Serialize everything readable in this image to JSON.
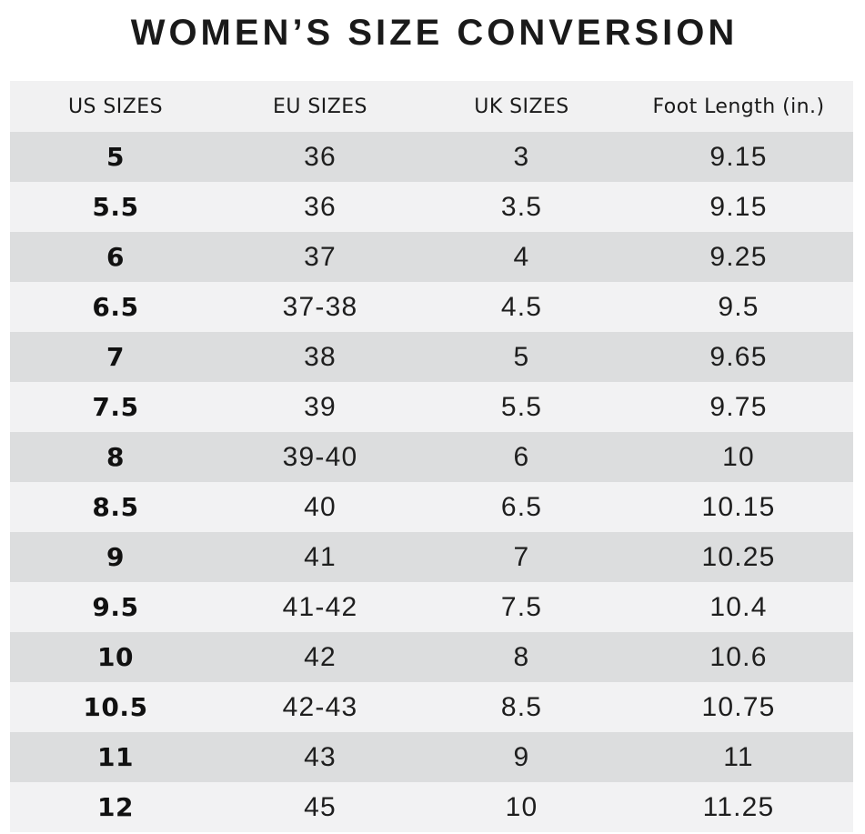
{
  "page": {
    "title": "WOMEN’S SIZE CONVERSION"
  },
  "colors": {
    "page_bg": "#ffffff",
    "header_row_bg": "#f1f1f2",
    "row_alt_dark": "#dcddde",
    "row_alt_light": "#f2f2f3",
    "text": "#1a1a1a"
  },
  "chart_data": {
    "type": "table",
    "title": "WOMEN’S SIZE CONVERSION",
    "columns": [
      "US SIZES",
      "EU SIZES",
      "UK SIZES",
      "Foot Length (in.)"
    ],
    "rows": [
      [
        "5",
        "36",
        "3",
        "9.15"
      ],
      [
        "5.5",
        "36",
        "3.5",
        "9.15"
      ],
      [
        "6",
        "37",
        "4",
        "9.25"
      ],
      [
        "6.5",
        "37-38",
        "4.5",
        "9.5"
      ],
      [
        "7",
        "38",
        "5",
        "9.65"
      ],
      [
        "7.5",
        "39",
        "5.5",
        "9.75"
      ],
      [
        "8",
        "39-40",
        "6",
        "10"
      ],
      [
        "8.5",
        "40",
        "6.5",
        "10.15"
      ],
      [
        "9",
        "41",
        "7",
        "10.25"
      ],
      [
        "9.5",
        "41-42",
        "7.5",
        "10.4"
      ],
      [
        "10",
        "42",
        "8",
        "10.6"
      ],
      [
        "10.5",
        "42-43",
        "8.5",
        "10.75"
      ],
      [
        "11",
        "43",
        "9",
        "11"
      ],
      [
        "12",
        "45",
        "10",
        "11.25"
      ]
    ],
    "layout": {
      "striped": true,
      "first_data_row_shade": "dark",
      "us_column_bold": true
    }
  }
}
